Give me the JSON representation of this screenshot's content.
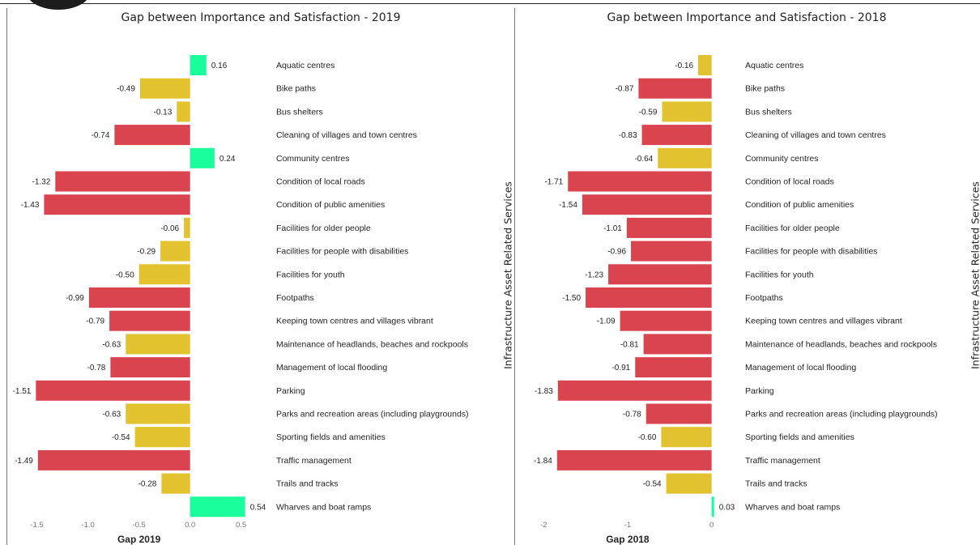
{
  "chart_data": [
    {
      "type": "bar",
      "orientation": "horizontal",
      "title": "Gap between Importance and Satisfaction - 2019",
      "xlabel": "Gap 2019",
      "side_label": "Infrastructure Asset Related Services",
      "xlim": [
        -1.6,
        0.55
      ],
      "ticks": [
        -1.5,
        -1.0,
        -0.5,
        0.0,
        0.5
      ],
      "tick_labels": [
        "-1.5",
        "-1.0",
        "-0.5",
        "0.0",
        "0.5"
      ],
      "categories": [
        "Aquatic centres",
        "Bike paths",
        "Bus shelters",
        "Cleaning of villages and town centres",
        "Community centres",
        "Condition of local roads",
        "Condition of public amenities",
        "Facilities for older people",
        "Facilities for people with disabilities",
        "Facilities for youth",
        "Footpaths",
        "Keeping town centres and villages vibrant",
        "Maintenance of headlands, beaches and rockpools",
        "Management of local flooding",
        "Parking",
        "Parks and recreation areas (including playgrounds)",
        "Sporting fields and amenities",
        "Traffic management",
        "Trails and tracks",
        "Wharves and boat ramps"
      ],
      "values": [
        0.16,
        -0.49,
        -0.13,
        -0.74,
        0.24,
        -1.32,
        -1.43,
        -0.06,
        -0.29,
        -0.5,
        -0.99,
        -0.79,
        -0.63,
        -0.78,
        -1.51,
        -0.63,
        -0.54,
        -1.49,
        -0.28,
        0.54
      ],
      "value_labels": [
        "0.16",
        "-0.49",
        "-0.13",
        "-0.74",
        "0.24",
        "-1.32",
        "-1.43",
        "-0.06",
        "-0.29",
        "-0.50",
        "-0.99",
        "-0.79",
        "-0.63",
        "-0.78",
        "-1.51",
        "-0.63",
        "-0.54",
        "-1.49",
        "-0.28",
        "0.54"
      ],
      "grid": false
    },
    {
      "type": "bar",
      "orientation": "horizontal",
      "title": "Gap between Importance and Satisfaction - 2018",
      "xlabel": "Gap 2018",
      "side_label": "Infrastructure Asset Related Services",
      "xlim": [
        -2.05,
        0.1
      ],
      "ticks": [
        -2,
        -1,
        0
      ],
      "tick_labels": [
        "-2",
        "-1",
        "0"
      ],
      "categories": [
        "Aquatic centres",
        "Bike paths",
        "Bus shelters",
        "Cleaning of villages and town centres",
        "Community centres",
        "Condition of local roads",
        "Condition of public amenities",
        "Facilities for older people",
        "Facilities for people with disabilities",
        "Facilities for youth",
        "Footpaths",
        "Keeping town centres and villages vibrant",
        "Maintenance of headlands, beaches and rockpools",
        "Management of local flooding",
        "Parking",
        "Parks and recreation areas (including playgrounds)",
        "Sporting fields and amenities",
        "Traffic management",
        "Trails and tracks",
        "Wharves and boat ramps"
      ],
      "values": [
        -0.16,
        -0.87,
        -0.59,
        -0.83,
        -0.64,
        -1.71,
        -1.54,
        -1.01,
        -0.96,
        -1.23,
        -1.5,
        -1.09,
        -0.81,
        -0.91,
        -1.83,
        -0.78,
        -0.6,
        -1.84,
        -0.54,
        0.03
      ],
      "value_labels": [
        "-0.16",
        "-0.87",
        "-0.59",
        "-0.83",
        "-0.64",
        "-1.71",
        "-1.54",
        "-1.01",
        "-0.96",
        "-1.23",
        "-1.50",
        "-1.09",
        "-0.81",
        "-0.91",
        "-1.83",
        "-0.78",
        "-0.60",
        "-1.84",
        "-0.54",
        "0.03"
      ],
      "grid": false
    }
  ],
  "colors": {
    "positive": "#1aff9c",
    "moderate": "#e2c22e",
    "large_gap": "#d9444f",
    "large_gap_threshold": -0.7
  }
}
